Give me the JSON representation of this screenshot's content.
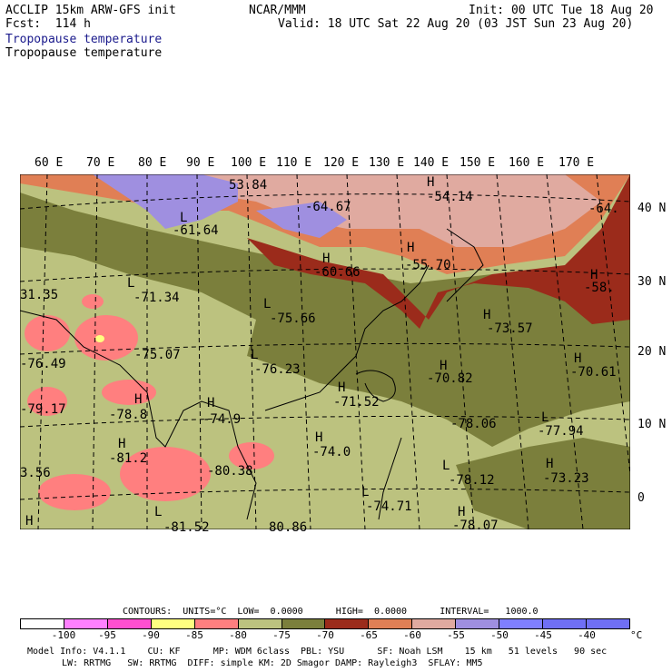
{
  "header": {
    "model": "ACCLIP 15km ARW-GFS init",
    "org": "NCAR/MMM",
    "init": "Init: 00 UTC Tue 18 Aug 20",
    "fcst": "Fcst:  114 h",
    "valid": "Valid: 18 UTC Sat 22 Aug 20 (03 JST Sun 23 Aug 20)",
    "field1": "Tropopause temperature",
    "field2": "Tropopause temperature"
  },
  "lon_labels": [
    "60 E",
    "70 E",
    "80 E",
    "90 E",
    "100 E",
    "110 E",
    "120 E",
    "130 E",
    "140 E",
    "150 E",
    "160 E",
    "170 E"
  ],
  "lat_labels": [
    "40 N",
    "30 N",
    "20 N",
    "10 N",
    "0"
  ],
  "map_labels": [
    {
      "t": "53.84"
    },
    {
      "t": "L"
    },
    {
      "t": "-61.64"
    },
    {
      "t": "-64.67"
    },
    {
      "t": "-54.14"
    },
    {
      "t": "H"
    },
    {
      "t": "-64."
    },
    {
      "t": "-60.66"
    },
    {
      "t": "H"
    },
    {
      "t": "-55.70"
    },
    {
      "t": "H"
    },
    {
      "t": "-58."
    },
    {
      "t": "H"
    },
    {
      "t": "31.35"
    },
    {
      "t": "-71.34"
    },
    {
      "t": "L"
    },
    {
      "t": "-75.66"
    },
    {
      "t": "L"
    },
    {
      "t": "-73.57"
    },
    {
      "t": "H"
    },
    {
      "t": "-75.07"
    },
    {
      "t": "-76.49"
    },
    {
      "t": "-76.23"
    },
    {
      "t": "L"
    },
    {
      "t": "-70.82"
    },
    {
      "t": "H"
    },
    {
      "t": "-70.61"
    },
    {
      "t": "H"
    },
    {
      "t": "-79.17"
    },
    {
      "t": "-78.8"
    },
    {
      "t": "H"
    },
    {
      "t": "-74.9"
    },
    {
      "t": "H"
    },
    {
      "t": "-71.52"
    },
    {
      "t": "H"
    },
    {
      "t": "-78.06"
    },
    {
      "t": "-77.94"
    },
    {
      "t": "L"
    },
    {
      "t": "-81.2"
    },
    {
      "t": "H"
    },
    {
      "t": "-74.0"
    },
    {
      "t": "H"
    },
    {
      "t": "-80.38"
    },
    {
      "t": "-78.12"
    },
    {
      "t": "L"
    },
    {
      "t": "-73.23"
    },
    {
      "t": "H"
    },
    {
      "t": "3.56"
    },
    {
      "t": "-74.71"
    },
    {
      "t": "L"
    },
    {
      "t": "-78.07"
    },
    {
      "t": "H"
    },
    {
      "t": "H"
    },
    {
      "t": "L"
    },
    {
      "t": "80.86"
    },
    {
      "t": "-81.52"
    }
  ],
  "contour_info": "CONTOURS:  UNITS=°C  LOW=  0.0000      HIGH=  0.0000      INTERVAL=   1000.0",
  "colorbar": {
    "colors": [
      "#ffffff",
      "#ff80ff",
      "#ff4fd0",
      "#ffff80",
      "#ff7f7f",
      "#bcc27f",
      "#7b7f3c",
      "#9b2b1b",
      "#e07f55",
      "#e0aaa0",
      "#9f8fe0",
      "#7f7fff",
      "#6f6ff5",
      "#6f6ff5"
    ],
    "ticks": [
      "-100",
      "-95",
      "-90",
      "-85",
      "-80",
      "-75",
      "-70",
      "-65",
      "-60",
      "-55",
      "-50",
      "-45",
      "-40"
    ],
    "unit": "°C"
  },
  "model_info_1": "Model Info: V4.1.1    CU: KF      MP: WDM 6class  PBL: YSU      SF: Noah LSM    15 km   51 levels   90 sec",
  "model_info_2": "LW: RRTMG   SW: RRTMG  DIFF: simple KM: 2D Smagor DAMP: Rayleigh3  SFLAY: MM5"
}
